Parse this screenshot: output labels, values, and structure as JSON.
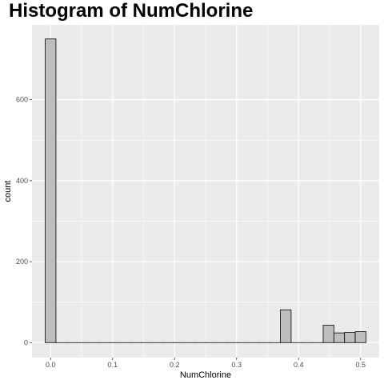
{
  "chart_data": {
    "type": "bar",
    "title": "Histogram of NumChlorine",
    "xlabel": "NumChlorine",
    "ylabel": "count",
    "xlim": [
      -0.03,
      0.53
    ],
    "ylim": [
      -37,
      785
    ],
    "x_ticks": [
      "0.0",
      "0.1",
      "0.2",
      "0.3",
      "0.4",
      "0.5"
    ],
    "x_tick_values": [
      0,
      0.1,
      0.2,
      0.3,
      0.4,
      0.5
    ],
    "y_ticks": [
      "0",
      "200",
      "400",
      "600"
    ],
    "y_tick_values": [
      0,
      200,
      400,
      600
    ],
    "bin_width": 0.01724,
    "bin_centers": [
      0.0,
      0.01724,
      0.03448,
      0.05172,
      0.06897,
      0.08621,
      0.10345,
      0.12069,
      0.13793,
      0.15517,
      0.17241,
      0.18966,
      0.2069,
      0.22414,
      0.24138,
      0.25862,
      0.27586,
      0.2931,
      0.31034,
      0.32759,
      0.34483,
      0.36207,
      0.37931,
      0.39655,
      0.41379,
      0.43103,
      0.44828,
      0.46552,
      0.48276,
      0.5
    ],
    "values": [
      750,
      0,
      0,
      0,
      0,
      0,
      0,
      0,
      0,
      0,
      0,
      0,
      0,
      0,
      0,
      0,
      0,
      0,
      0,
      0,
      0,
      0,
      81,
      0,
      0,
      0,
      43,
      24,
      25,
      27
    ],
    "grid": true,
    "colors": {
      "panel": "#ebebeb",
      "grid": "#ffffff",
      "bar_fill": "#bebebe",
      "bar_stroke": "#000000"
    }
  }
}
